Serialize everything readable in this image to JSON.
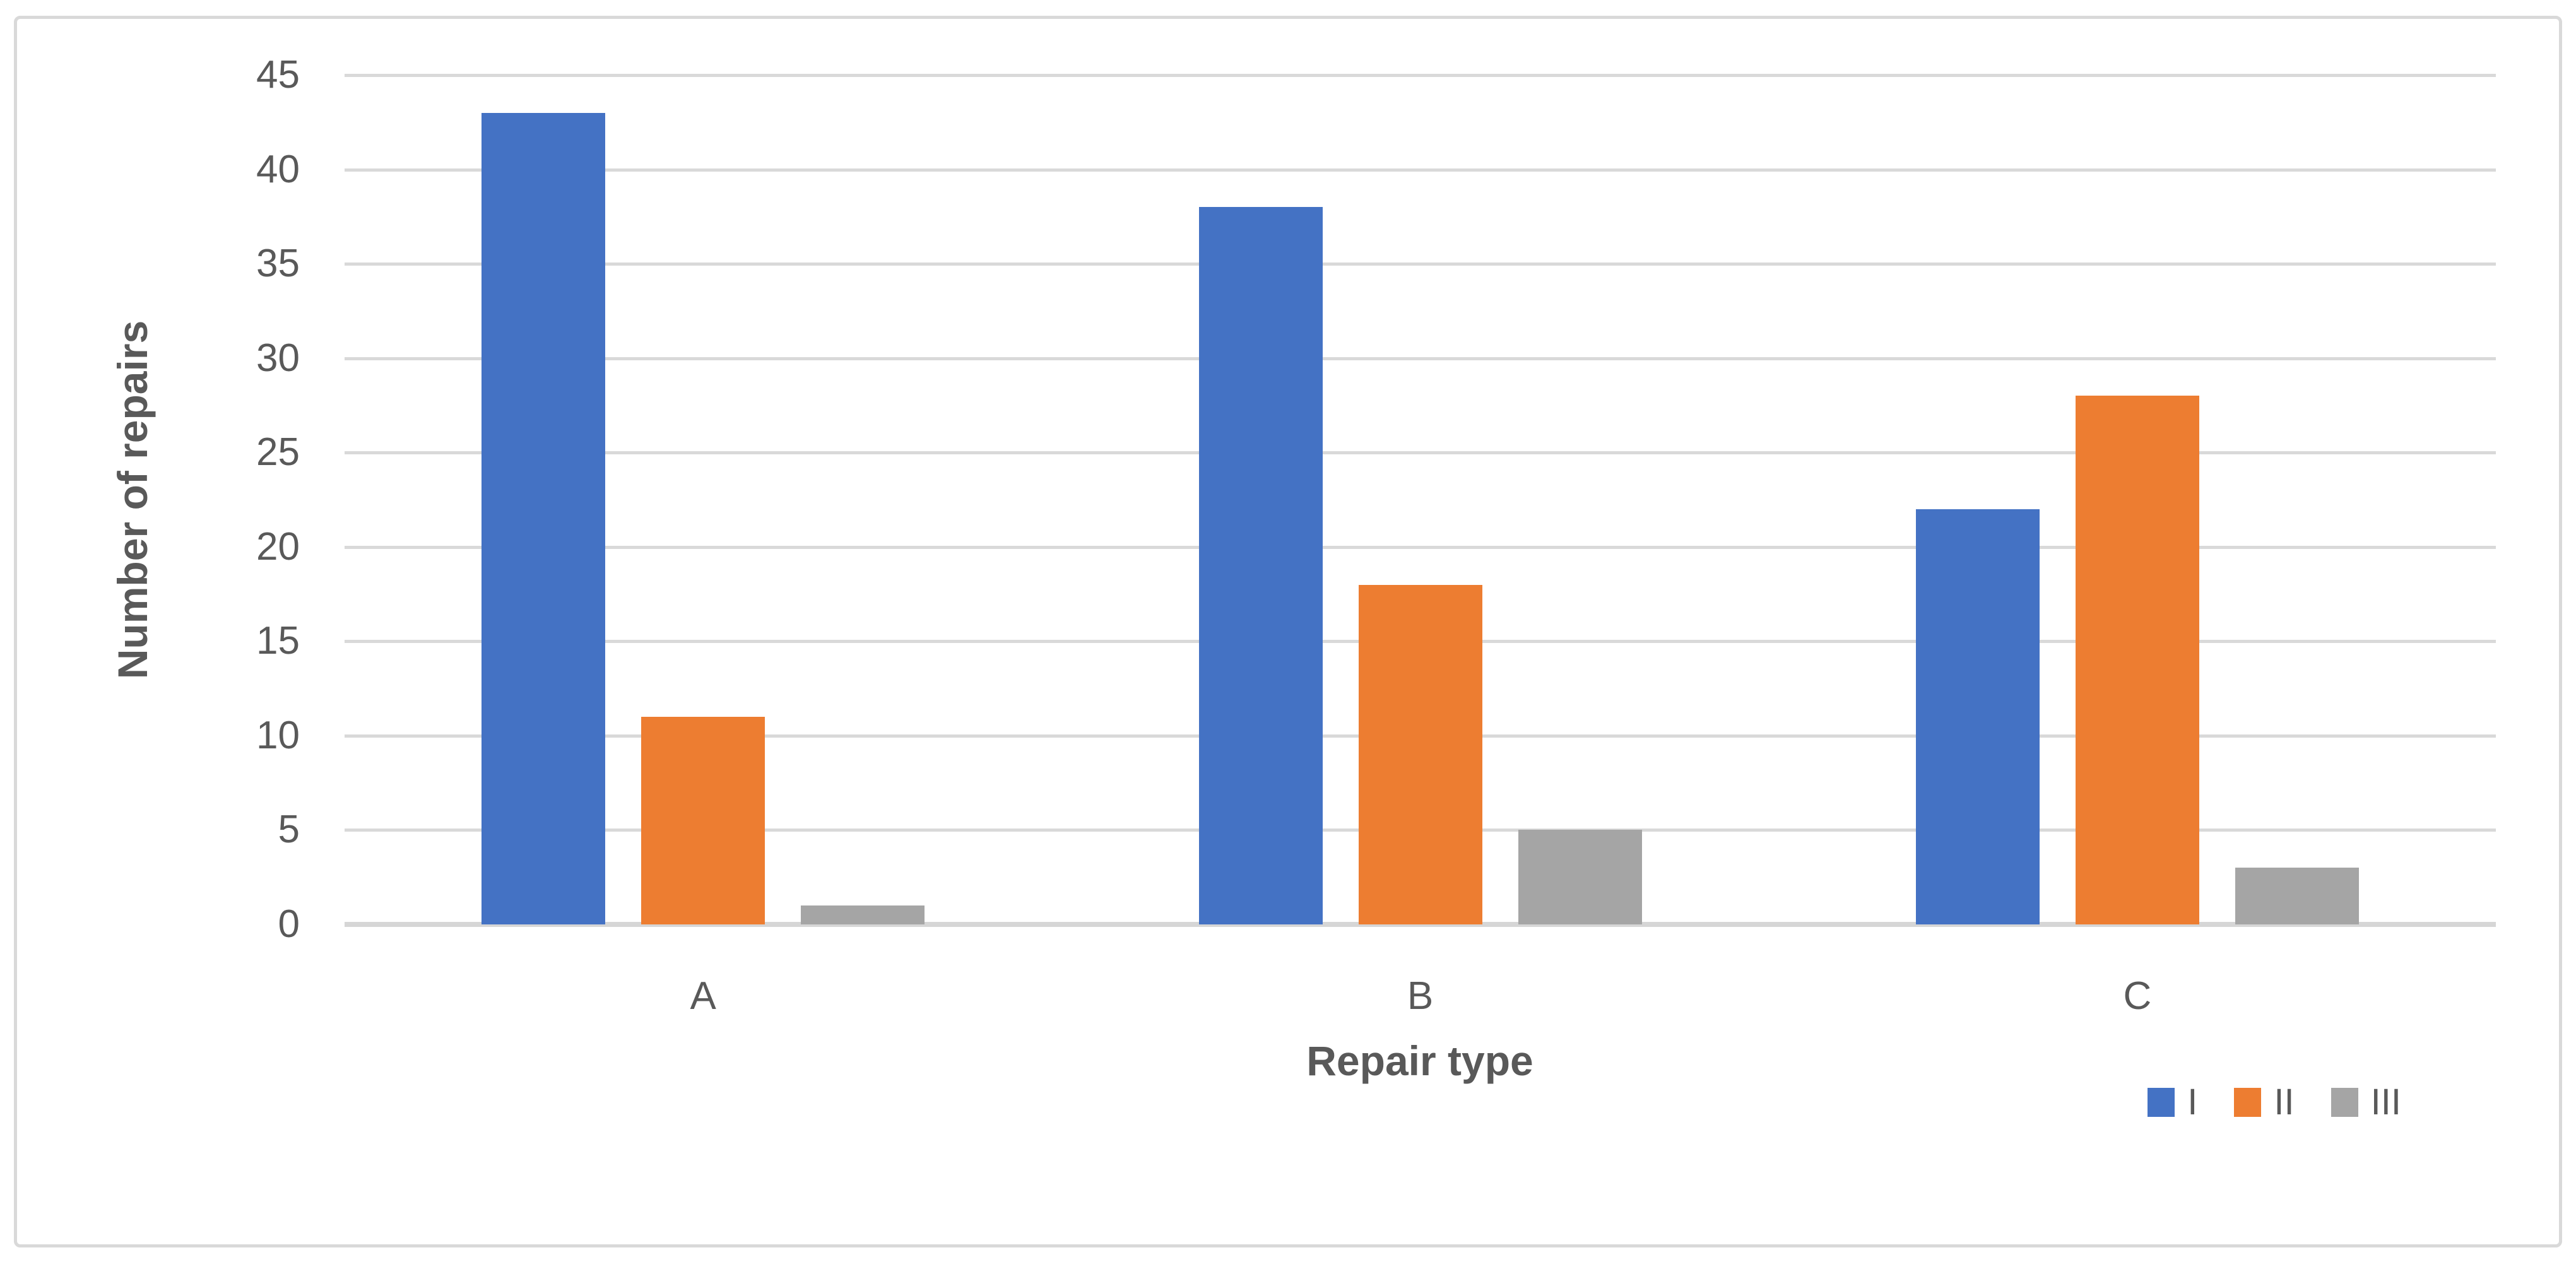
{
  "chart_data": {
    "type": "bar",
    "title": "",
    "categories": [
      "A",
      "B",
      "C"
    ],
    "series": [
      {
        "name": "I",
        "color": "#4472C4",
        "values": [
          43,
          38,
          22
        ]
      },
      {
        "name": "II",
        "color": "#ED7D31",
        "values": [
          11,
          18,
          28
        ]
      },
      {
        "name": "III",
        "color": "#A5A5A5",
        "values": [
          1,
          5,
          3
        ]
      }
    ],
    "xlabel": "Repair type",
    "ylabel": "Number of repairs",
    "ylim": [
      0,
      45
    ],
    "ytick_step": 5,
    "yticks": [
      "0",
      "5",
      "10",
      "15",
      "20",
      "25",
      "30",
      "35",
      "40",
      "45"
    ],
    "grid": true,
    "legend_position": "bottom-right",
    "legend_entries": [
      "I",
      "II",
      "III"
    ]
  },
  "style": {
    "frame_border_color": "#D9D9D9",
    "gridline_color": "#D9D9D9",
    "axis_line_color": "#D6D6D6",
    "text_color": "#595959",
    "background_color": "#FFFFFF"
  }
}
